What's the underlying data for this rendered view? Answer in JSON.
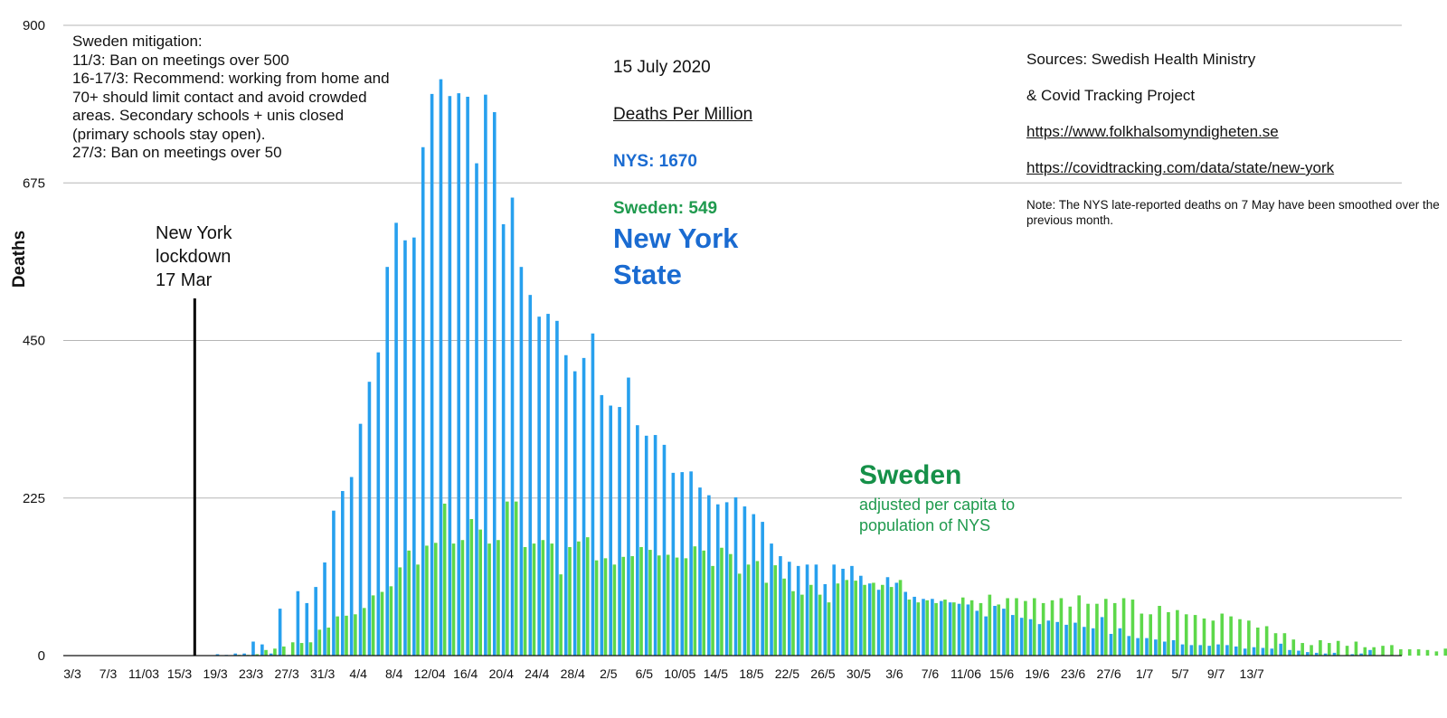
{
  "chart_data": {
    "type": "bar",
    "title": "Deaths Per Million",
    "ylabel": "Deaths",
    "xlabel": "",
    "ylim": [
      0,
      900
    ],
    "yticks": [
      0,
      225,
      450,
      675,
      900
    ],
    "grid": true,
    "xtick_labels": [
      "3/3",
      "7/3",
      "11/03",
      "15/3",
      "19/3",
      "23/3",
      "27/3",
      "31/3",
      "4/4",
      "8/4",
      "12/04",
      "16/4",
      "20/4",
      "24/4",
      "28/4",
      "2/5",
      "6/5",
      "10/05",
      "14/5",
      "18/5",
      "22/5",
      "26/5",
      "30/5",
      "3/6",
      "7/6",
      "11/06",
      "15/6",
      "19/6",
      "23/6",
      "27/6",
      "1/7",
      "5/7",
      "9/7",
      "13/7"
    ],
    "start_day": "3/3",
    "series": [
      {
        "name": "New York State",
        "color": "#27a0ee",
        "values": [
          0,
          0,
          0,
          0,
          0,
          0,
          0,
          0,
          0,
          0,
          0,
          0,
          0,
          0,
          0,
          0,
          2,
          1,
          3,
          3,
          20,
          16,
          3,
          67,
          1,
          92,
          75,
          98,
          133,
          207,
          235,
          255,
          331,
          391,
          433,
          555,
          618,
          593,
          597,
          726,
          802,
          823,
          799,
          803,
          798,
          703,
          801,
          776,
          616,
          654,
          555,
          515,
          484,
          488,
          478,
          429,
          406,
          425,
          460,
          372,
          357,
          355,
          397,
          329,
          314,
          315,
          301,
          261,
          262,
          263,
          240,
          229,
          216,
          219,
          226,
          213,
          202,
          191,
          160,
          142,
          134,
          128,
          130,
          130,
          102,
          130,
          124,
          128,
          114,
          103,
          94,
          112,
          104,
          91,
          84,
          81,
          81,
          78,
          76,
          74,
          73,
          64,
          56,
          71,
          67,
          58,
          54,
          52,
          45,
          50,
          48,
          44,
          47,
          41,
          39,
          55,
          31,
          39,
          28,
          25,
          25,
          23,
          20,
          22,
          16,
          15,
          15,
          14,
          16,
          15,
          13,
          10,
          12,
          11,
          10,
          17,
          8,
          7,
          5,
          4,
          3,
          4,
          0,
          2,
          3,
          8
        ]
      },
      {
        "name": "Sweden",
        "color": "#5dd84a",
        "values": [
          0,
          0,
          0,
          0,
          0,
          0,
          0,
          0,
          0,
          0,
          0,
          0,
          0,
          0,
          0,
          0,
          0,
          0,
          1,
          1,
          2,
          8,
          10,
          13,
          19,
          18,
          19,
          37,
          40,
          56,
          57,
          59,
          68,
          86,
          91,
          99,
          126,
          150,
          130,
          157,
          161,
          217,
          160,
          165,
          195,
          180,
          160,
          165,
          220,
          220,
          155,
          160,
          165,
          160,
          116,
          155,
          163,
          169,
          136,
          139,
          130,
          141,
          142,
          155,
          151,
          143,
          144,
          140,
          139,
          156,
          150,
          128,
          154,
          145,
          117,
          130,
          135,
          104,
          129,
          110,
          92,
          87,
          101,
          87,
          76,
          103,
          108,
          107,
          101,
          104,
          101,
          98,
          108,
          80,
          76,
          79,
          75,
          80,
          76,
          83,
          79,
          75,
          87,
          73,
          82,
          82,
          78,
          82,
          75,
          79,
          82,
          70,
          86,
          74,
          74,
          81,
          75,
          82,
          80,
          60,
          59,
          71,
          62,
          65,
          59,
          58,
          53,
          50,
          60,
          56,
          52,
          50,
          40,
          42,
          32,
          32,
          23,
          18,
          15,
          22,
          18,
          21,
          14,
          20,
          12,
          12,
          14,
          15,
          9,
          9,
          9,
          8,
          6,
          10,
          8,
          8,
          8
        ]
      }
    ],
    "annotations": {
      "lockdown": {
        "day": "17/3",
        "label": "New York\nlockdown\n17 Mar"
      }
    }
  },
  "texts": {
    "mitigation": "Sweden mitigation:\n11/3: Ban on meetings over 500\n16-17/3: Recommend: working from home and 70+ should limit contact and avoid crowded areas. Secondary schools + unis closed (primary schools stay open).\n27/3: Ban on meetings over 50",
    "date": "15 July 2020",
    "subtitle": "Deaths Per Million",
    "nys_stat": "NYS: 1670",
    "sweden_stat": "Sweden: 549",
    "nys_label": "New York\nState",
    "sweden_label": "Sweden",
    "sweden_sub": "adjusted per capita to\npopulation of NYS",
    "sources_line1": "Sources: Swedish Health Ministry",
    "sources_line2": "& Covid Tracking Project",
    "link1": "https://www.folkhalsomyndigheten.se",
    "link2": "https://covidtracking.com/data/state/new-york",
    "note": "Note: The NYS late-reported deaths on 7 May have been smoothed over the previous month."
  }
}
